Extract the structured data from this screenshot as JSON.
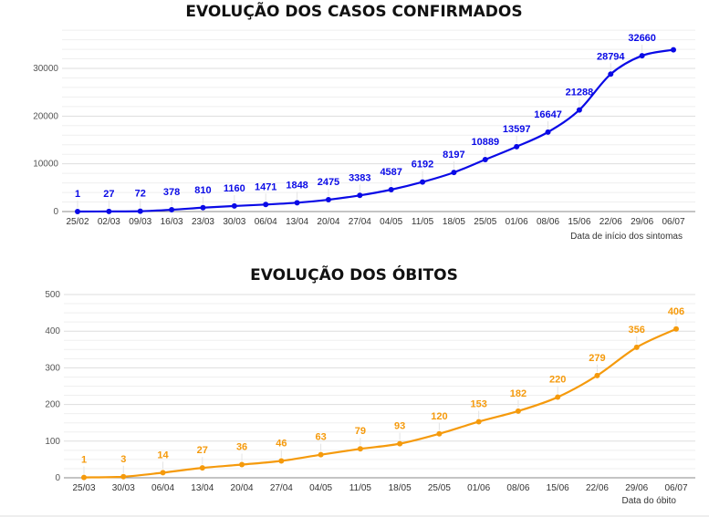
{
  "chart_data": [
    {
      "type": "line",
      "title": "EVOLUÇÃO DOS CASOS CONFIRMADOS",
      "xlabel": "Data de início dos sintomas",
      "ylabel": "",
      "ylim": [
        0,
        38000
      ],
      "yticks": [
        0,
        10000,
        20000,
        30000
      ],
      "grid": true,
      "color": "#0a0ae6",
      "categories": [
        "25/02",
        "02/03",
        "09/03",
        "16/03",
        "23/03",
        "30/03",
        "06/04",
        "13/04",
        "20/04",
        "27/04",
        "04/05",
        "11/05",
        "18/05",
        "25/05",
        "01/06",
        "08/06",
        "15/06",
        "22/06",
        "29/06",
        "06/07"
      ],
      "values": [
        1,
        27,
        72,
        378,
        810,
        1160,
        1471,
        1848,
        2475,
        3383,
        4587,
        6192,
        8197,
        10889,
        13597,
        16647,
        21288,
        28794,
        32660,
        33900
      ],
      "labels": [
        "1",
        "27",
        "72",
        "378",
        "810",
        "1160",
        "1471",
        "1848",
        "2475",
        "3383",
        "4587",
        "6192",
        "8197",
        "10889",
        "13597",
        "16647",
        "21288",
        "28794",
        "32660",
        ""
      ]
    },
    {
      "type": "line",
      "title": "EVOLUÇÃO DOS ÓBITOS",
      "xlabel": "Data do óbito",
      "ylabel": "",
      "ylim": [
        0,
        500
      ],
      "yticks": [
        0,
        100,
        200,
        300,
        400,
        500
      ],
      "grid": true,
      "color": "#f59a0c",
      "categories": [
        "25/03",
        "30/03",
        "06/04",
        "13/04",
        "20/04",
        "27/04",
        "04/05",
        "11/05",
        "18/05",
        "25/05",
        "01/06",
        "08/06",
        "15/06",
        "22/06",
        "29/06",
        "06/07"
      ],
      "values": [
        1,
        3,
        14,
        27,
        36,
        46,
        63,
        79,
        93,
        120,
        153,
        182,
        220,
        279,
        356,
        406
      ],
      "labels": [
        "1",
        "3",
        "14",
        "27",
        "36",
        "46",
        "63",
        "79",
        "93",
        "120",
        "153",
        "182",
        "220",
        "279",
        "356",
        "406"
      ]
    }
  ]
}
